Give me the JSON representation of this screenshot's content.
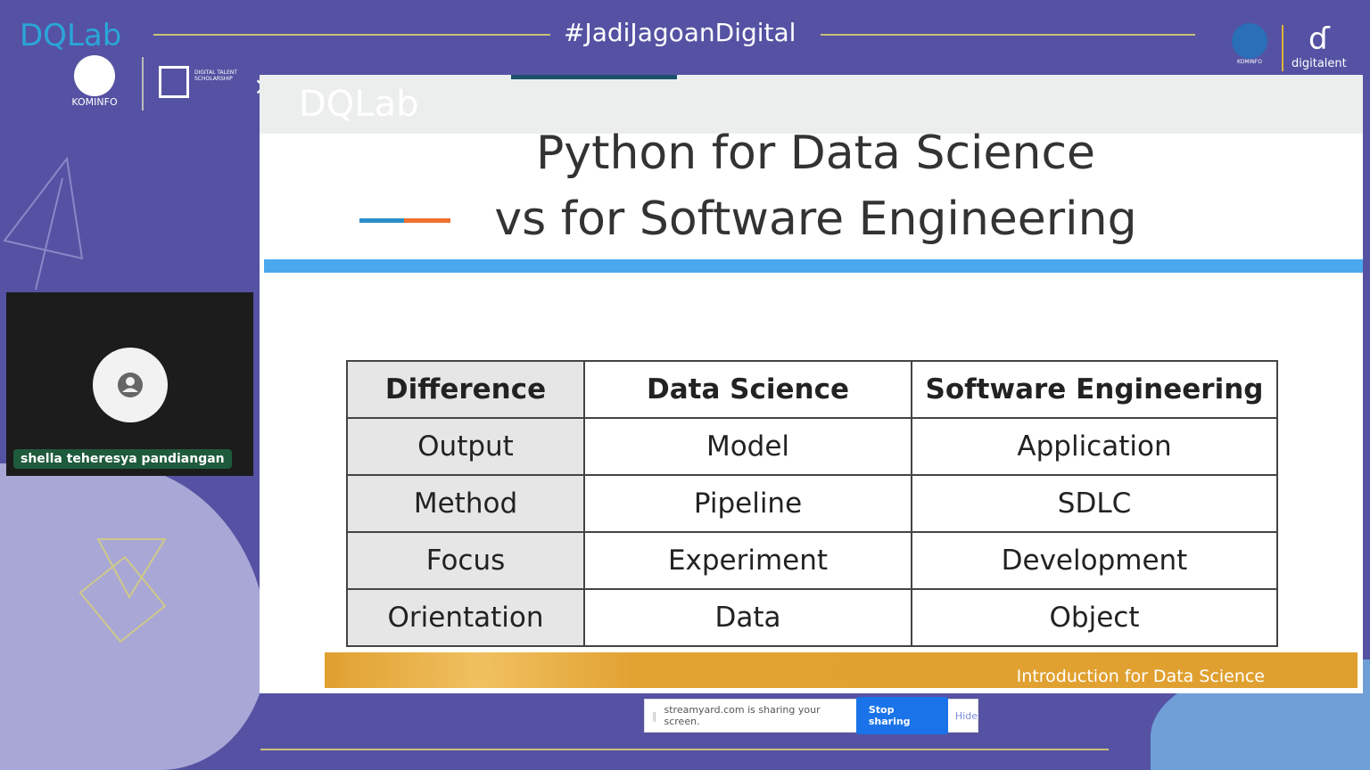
{
  "header": {
    "hashtag": "#JadiJagoanDigital",
    "logo_dqlab": "DQLab",
    "logo_kominfo": "KOMINFO",
    "logo_dts": "DIGITAL TALENT SCHOLARSHIP",
    "times": "×",
    "logo_dqlab_white": "DQLab",
    "logo_digitalent": "digitalent",
    "logo_kominfo_small": "KOMINFO"
  },
  "participant": {
    "name": "shella teheresya pandiangan"
  },
  "slide": {
    "title_line1": "Python for Data Science",
    "title_line2": "vs for Software Engineering",
    "table": {
      "headers": [
        "Difference",
        "Data Science",
        "Software Engineering"
      ],
      "rows": [
        [
          "Output",
          "Model",
          "Application"
        ],
        [
          "Method",
          "Pipeline",
          "SDLC"
        ],
        [
          "Focus",
          "Experiment",
          "Development"
        ],
        [
          "Orientation",
          "Data",
          "Object"
        ]
      ]
    },
    "footer": "Introduction  for Data Science"
  },
  "share_bar": {
    "message": "streamyard.com is sharing your screen.",
    "stop_label": "Stop sharing",
    "hide_label": "Hide"
  },
  "colors": {
    "background": "#5552a3",
    "slide_bar": "#4aa8ee",
    "footer": "#e0a030",
    "stop_button": "#1a73e8"
  }
}
